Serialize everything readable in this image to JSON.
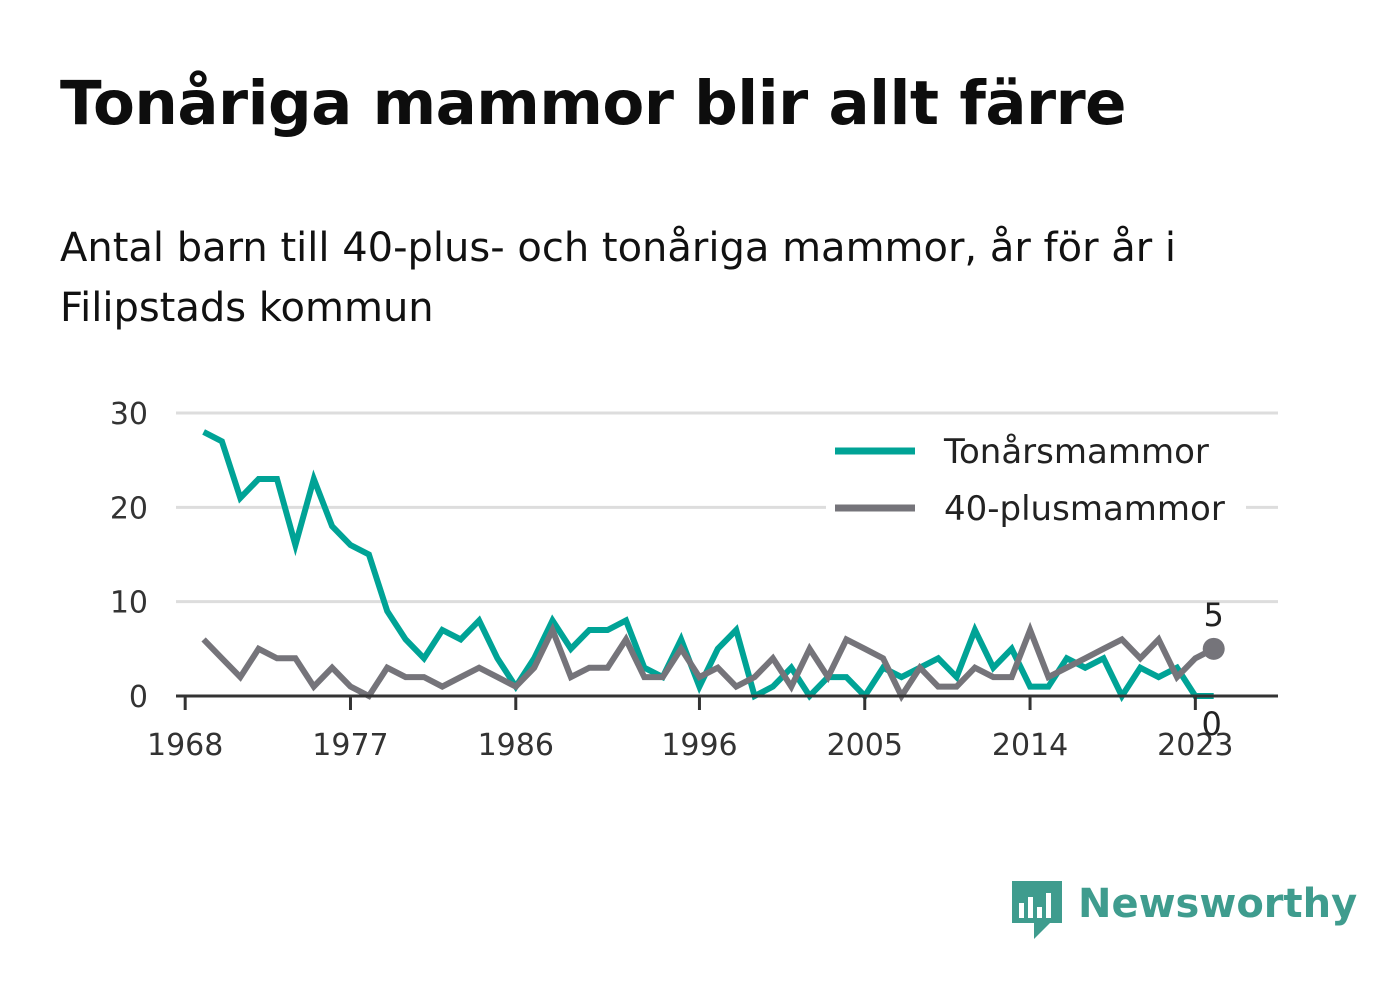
{
  "title": "Tonåriga mammor blir allt färre",
  "subtitle": "Antal barn till 40-plus- och tonåriga mammor, år för år i Filipstads kommun",
  "brand": "Newsworthy",
  "colors": {
    "teen": "#00a396",
    "forty": "#75747a",
    "grid": "#dddddd",
    "axis": "#333333",
    "brand": "#3f9c8e"
  },
  "chart_data": {
    "type": "line",
    "title": "Tonåriga mammor blir allt färre",
    "subtitle": "Antal barn till 40-plus- och tonåriga mammor, år för år i Filipstads kommun",
    "xlabel": "",
    "ylabel": "",
    "x": [
      1969,
      1970,
      1971,
      1972,
      1973,
      1974,
      1975,
      1976,
      1977,
      1978,
      1979,
      1980,
      1981,
      1982,
      1983,
      1984,
      1985,
      1986,
      1987,
      1988,
      1989,
      1990,
      1991,
      1992,
      1993,
      1994,
      1995,
      1996,
      1997,
      1998,
      1999,
      2000,
      2001,
      2002,
      2003,
      2004,
      2005,
      2006,
      2007,
      2008,
      2009,
      2010,
      2011,
      2012,
      2013,
      2014,
      2015,
      2016,
      2017,
      2018,
      2019,
      2020,
      2021,
      2022,
      2023,
      2024
    ],
    "x_ticks": [
      "1968",
      "1977",
      "1986",
      "1996",
      "2005",
      "2014",
      "2023"
    ],
    "x_range": [
      1967.5,
      2027.5
    ],
    "y_ticks": [
      "0",
      "10",
      "20",
      "30"
    ],
    "ylim": [
      0,
      30
    ],
    "grid": true,
    "legend_position": "top-right",
    "series": [
      {
        "name": "Tonårsmammor",
        "color": "#00a396",
        "values": [
          28,
          27,
          21,
          23,
          23,
          16,
          23,
          18,
          16,
          15,
          9,
          6,
          4,
          7,
          6,
          8,
          4,
          1,
          4,
          8,
          5,
          7,
          7,
          8,
          3,
          2,
          6,
          1,
          5,
          7,
          0,
          1,
          3,
          0,
          2,
          2,
          0,
          3,
          2,
          3,
          4,
          2,
          7,
          3,
          5,
          1,
          1,
          4,
          3,
          4,
          0,
          3,
          2,
          3,
          0,
          0
        ],
        "end_label": "0"
      },
      {
        "name": "40-plusmammor",
        "color": "#75747a",
        "values": [
          6,
          4,
          2,
          5,
          4,
          4,
          1,
          3,
          1,
          0,
          3,
          2,
          2,
          1,
          2,
          3,
          2,
          1,
          3,
          7,
          2,
          3,
          3,
          6,
          2,
          2,
          5,
          2,
          3,
          1,
          2,
          4,
          1,
          5,
          2,
          6,
          5,
          4,
          0,
          3,
          1,
          1,
          3,
          2,
          2,
          7,
          2,
          3,
          4,
          5,
          6,
          4,
          6,
          2,
          4,
          5
        ],
        "end_label": "5"
      }
    ]
  }
}
